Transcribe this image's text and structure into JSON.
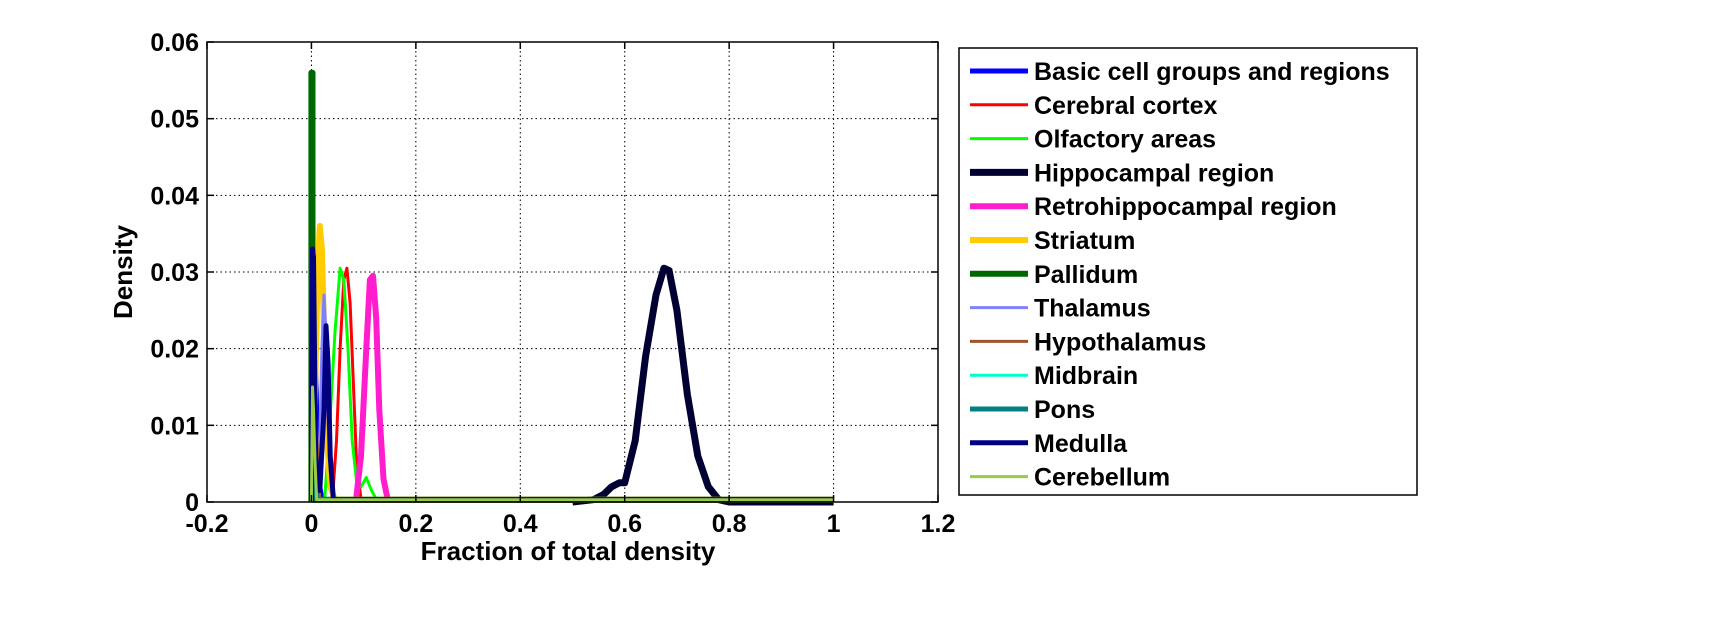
{
  "chart_data": {
    "type": "line",
    "title": "",
    "xlabel": "Fraction of total density",
    "ylabel": "Density",
    "xlim": [
      -0.2,
      1.2
    ],
    "ylim": [
      0,
      0.06
    ],
    "xticks": [
      "-0.2",
      "0",
      "0.2",
      "0.4",
      "0.6",
      "0.8",
      "1",
      "1.2"
    ],
    "yticks": [
      "0",
      "0.01",
      "0.02",
      "0.03",
      "0.04",
      "0.05",
      "0.06"
    ],
    "grid": true,
    "legend_position": "outside-right",
    "series": [
      {
        "name": "Basic cell groups and regions",
        "color": "#0000ff",
        "width": 5,
        "x": [
          0,
          0.003,
          0.006,
          0.009,
          0.012,
          0.016,
          0.02,
          1.0
        ],
        "y": [
          0,
          0.012,
          0.022,
          0.015,
          0.006,
          0.002,
          0.0003,
          0.0003
        ]
      },
      {
        "name": "Cerebral cortex",
        "color": "#ff0000",
        "width": 3,
        "x": [
          0.04,
          0.048,
          0.055,
          0.062,
          0.068,
          0.074,
          0.08,
          0.086,
          0.095,
          1.0
        ],
        "y": [
          0,
          0.008,
          0.02,
          0.029,
          0.0305,
          0.026,
          0.016,
          0.006,
          0.0003,
          0.0003
        ]
      },
      {
        "name": "Olfactory areas",
        "color": "#00ff00",
        "width": 3,
        "x": [
          0.025,
          0.035,
          0.045,
          0.055,
          0.062,
          0.07,
          0.078,
          0.086,
          0.095,
          0.105,
          0.115,
          0.125,
          1.0
        ],
        "y": [
          0,
          0.01,
          0.022,
          0.0305,
          0.029,
          0.02,
          0.008,
          0.003,
          0.002,
          0.0032,
          0.0015,
          0.0003,
          0.0003
        ]
      },
      {
        "name": "Hippocampal region",
        "color": "#000033",
        "width": 7,
        "x": [
          0.5,
          0.54,
          0.56,
          0.575,
          0.59,
          0.6,
          0.62,
          0.64,
          0.66,
          0.675,
          0.685,
          0.7,
          0.72,
          0.74,
          0.76,
          0.78,
          0.8,
          1.0
        ],
        "y": [
          0,
          0.0003,
          0.001,
          0.002,
          0.0025,
          0.0025,
          0.008,
          0.019,
          0.027,
          0.0305,
          0.0302,
          0.025,
          0.014,
          0.006,
          0.002,
          0.0003,
          0,
          0
        ]
      },
      {
        "name": "Retrohippocampal region",
        "color": "#ff1dce",
        "width": 6,
        "x": [
          0.085,
          0.095,
          0.105,
          0.112,
          0.118,
          0.124,
          0.13,
          0.138,
          0.146,
          1.0
        ],
        "y": [
          0,
          0.006,
          0.02,
          0.029,
          0.0295,
          0.024,
          0.012,
          0.003,
          0.0003,
          0.0003
        ]
      },
      {
        "name": "Striatum",
        "color": "#ffcc00",
        "width": 6,
        "x": [
          0,
          0.006,
          0.012,
          0.016,
          0.02,
          0.025,
          0.03,
          0.036,
          0.045,
          1.0
        ],
        "y": [
          0,
          0.012,
          0.03,
          0.036,
          0.033,
          0.02,
          0.008,
          0.002,
          0.0003,
          0.0003
        ]
      },
      {
        "name": "Pallidum",
        "color": "#006600",
        "width": 6,
        "x": [
          0,
          0,
          0.002,
          0.002,
          1.0
        ],
        "y": [
          0,
          0.056,
          0.056,
          0.0003,
          0.0003
        ]
      },
      {
        "name": "Thalamus",
        "color": "#8080ff",
        "width": 3,
        "x": [
          0.012,
          0.016,
          0.02,
          0.024,
          0.028,
          0.032,
          0.037,
          0.042,
          1.0
        ],
        "y": [
          0,
          0.008,
          0.02,
          0.027,
          0.022,
          0.01,
          0.003,
          0.0003,
          0.0003
        ]
      },
      {
        "name": "Hypothalamus",
        "color": "#a0522d",
        "width": 3,
        "x": [
          0,
          0.004,
          0.008,
          0.012,
          0.016,
          1.0
        ],
        "y": [
          0,
          0.008,
          0.012,
          0.006,
          0.0003,
          0.0003
        ]
      },
      {
        "name": "Midbrain",
        "color": "#00ffcc",
        "width": 3,
        "x": [
          0,
          0.002,
          0.004,
          0.006,
          0.01,
          1.0
        ],
        "y": [
          0,
          0.012,
          0.015,
          0.008,
          0.0003,
          0.0003
        ]
      },
      {
        "name": "Pons",
        "color": "#008080",
        "width": 5,
        "x": [
          0,
          0.003,
          0.006,
          0.01,
          1.0
        ],
        "y": [
          0,
          0.008,
          0.004,
          0.0003,
          0.0003
        ]
      },
      {
        "name": "Medulla",
        "color": "#000080",
        "width": 5,
        "x": [
          0,
          0.002,
          0.004,
          0.008,
          0.016,
          0.024,
          0.028,
          0.032,
          0.036,
          0.042,
          1.0
        ],
        "y": [
          0,
          0.033,
          0.032,
          0.006,
          0.0015,
          0.012,
          0.023,
          0.018,
          0.006,
          0.0003,
          0.0003
        ]
      },
      {
        "name": "Cerebellum",
        "color": "#99cc44",
        "width": 3,
        "x": [
          0,
          0.002,
          0.004,
          0.007,
          0.01,
          1.0
        ],
        "y": [
          0,
          0.015,
          0.012,
          0.005,
          0.0003,
          0.0003
        ]
      }
    ]
  }
}
